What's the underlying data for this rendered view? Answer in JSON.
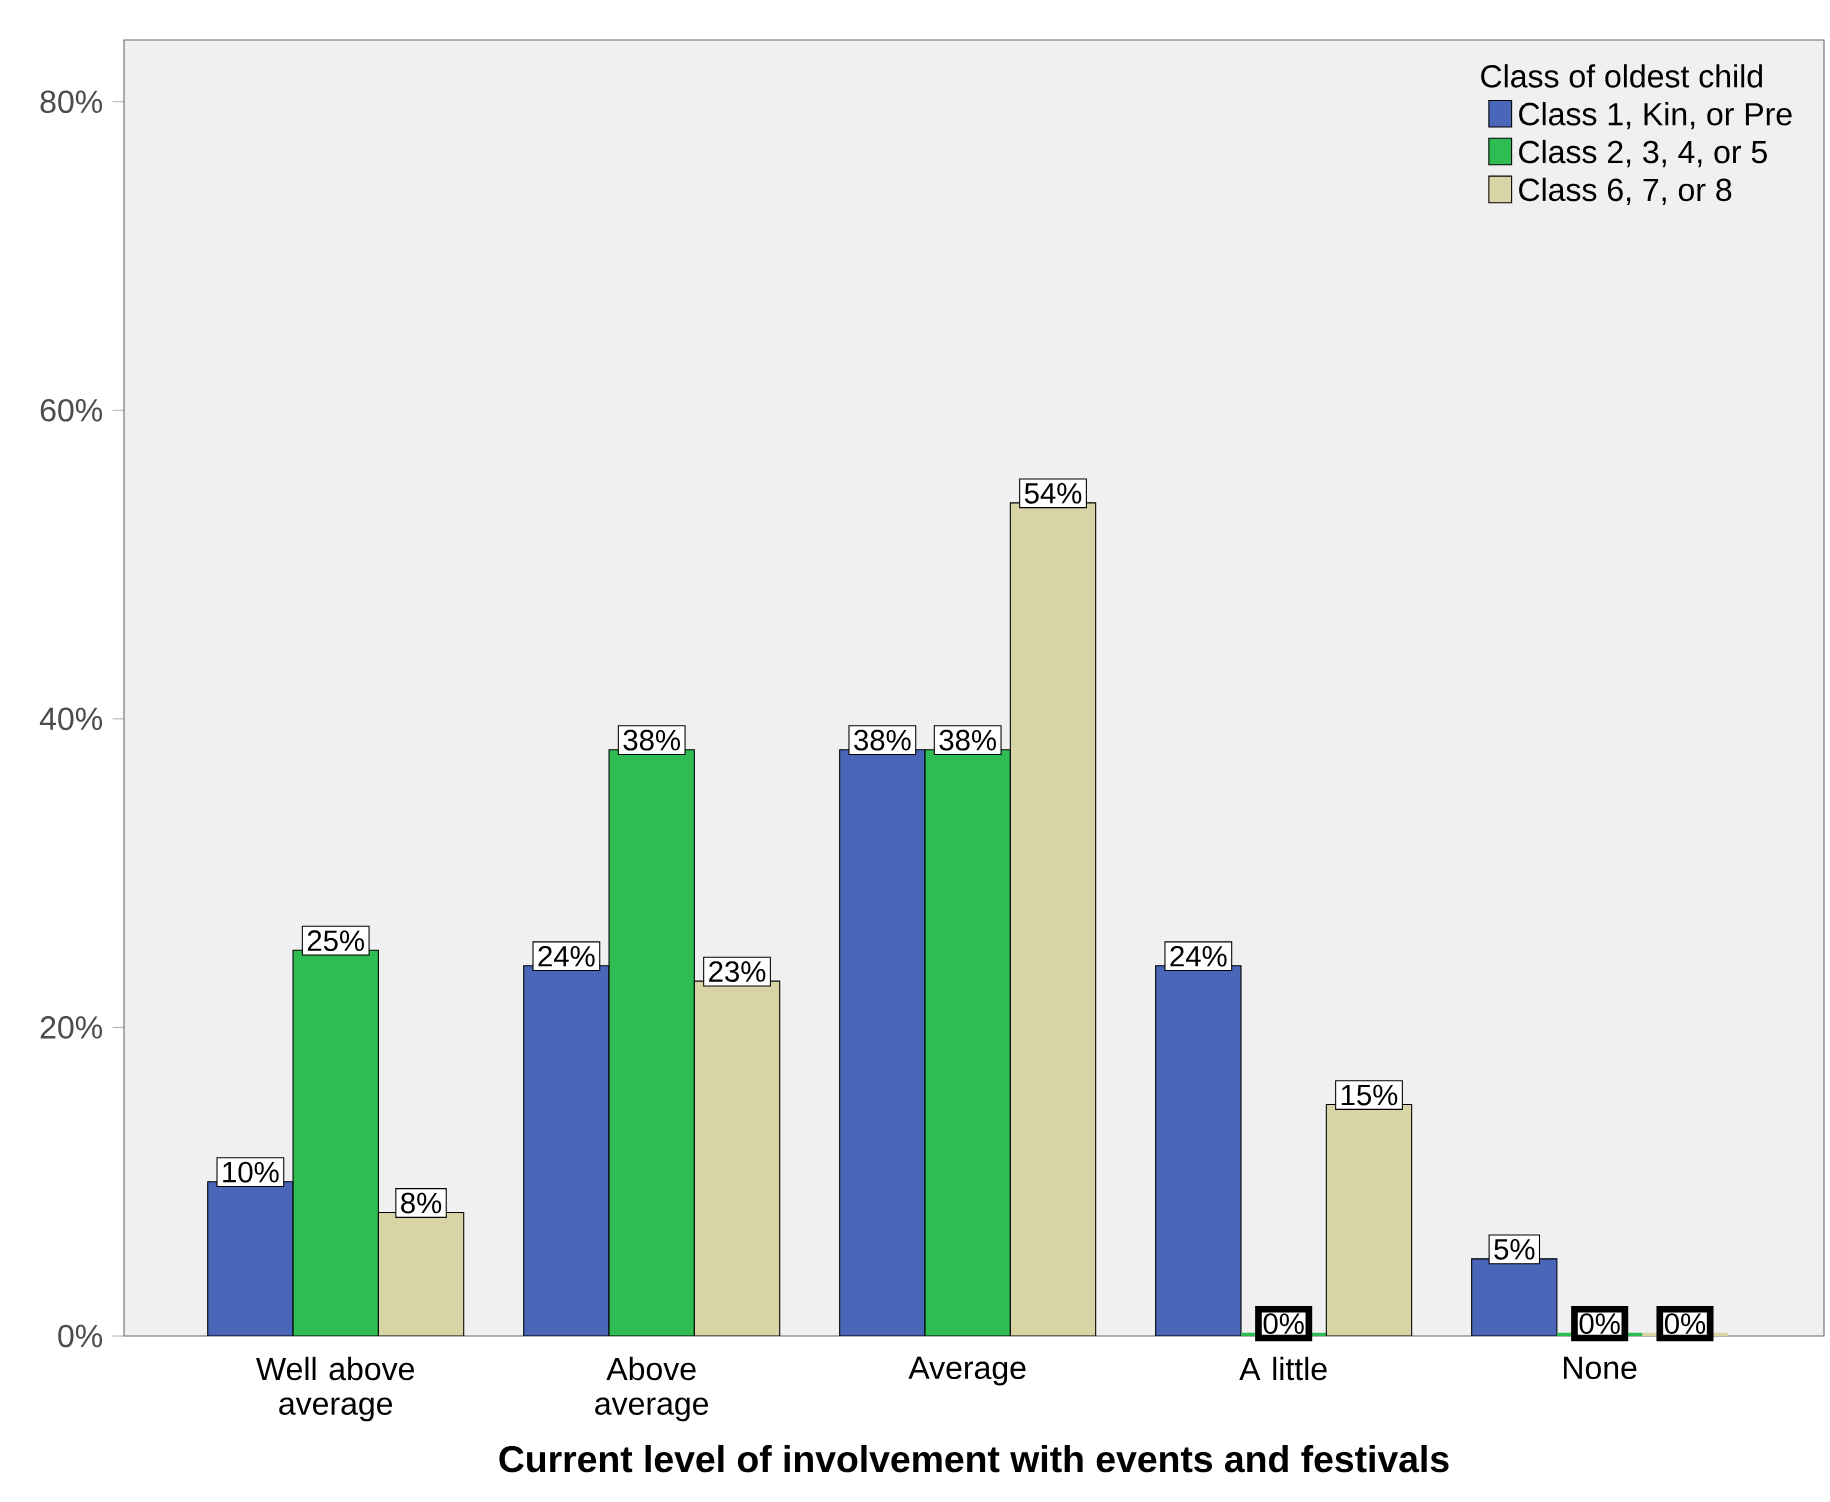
{
  "chart_data": {
    "type": "bar",
    "xlabel": "Current level of involvement with events and festivals",
    "legend_title": "Class of oldest child",
    "categories": [
      "Well above average",
      "Above average",
      "Average",
      "A little",
      "None"
    ],
    "series": [
      {
        "name": "Class 1, Kin, or Pre",
        "color": "#4a66b8",
        "values": [
          10,
          24,
          38,
          24,
          5
        ],
        "value_labels": [
          "10%",
          "24%",
          "38%",
          "24%",
          "5%"
        ]
      },
      {
        "name": "Class 2, 3, 4, or 5",
        "color": "#2fbd53",
        "values": [
          25,
          38,
          38,
          0,
          0
        ],
        "value_labels": [
          "25%",
          "38%",
          "38%",
          "0%",
          "0%"
        ]
      },
      {
        "name": "Class 6, 7, or 8",
        "color": "#d9d4a6",
        "values": [
          8,
          23,
          54,
          15,
          0
        ],
        "value_labels": [
          "8%",
          "23%",
          "54%",
          "15%",
          "0%"
        ]
      }
    ],
    "ylim": [
      0,
      84
    ],
    "yticks": [
      {
        "value": 0,
        "label": "0%"
      },
      {
        "value": 20,
        "label": "20%"
      },
      {
        "value": 40,
        "label": "40%"
      },
      {
        "value": 60,
        "label": "60%"
      },
      {
        "value": 80,
        "label": "80%"
      }
    ],
    "grid": false,
    "legend": "top right"
  }
}
